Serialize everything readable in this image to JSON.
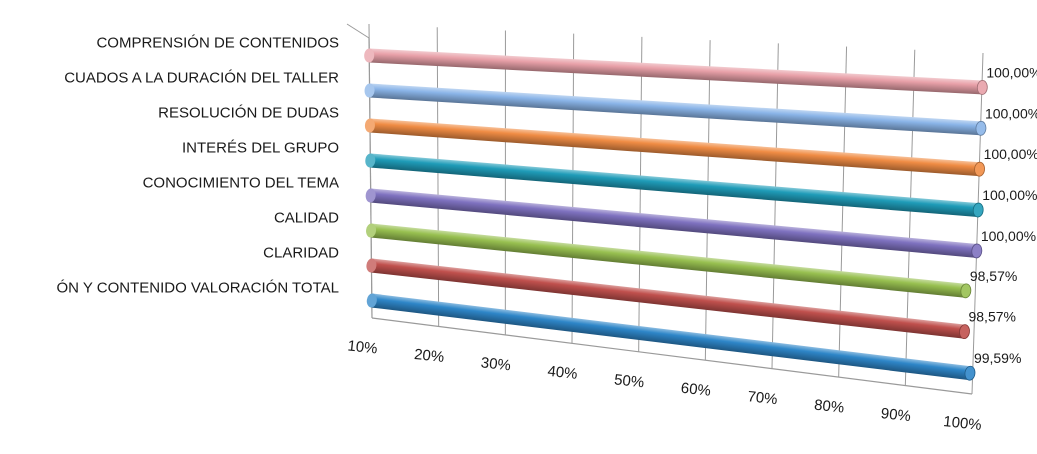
{
  "chart_data": {
    "type": "bar",
    "orientation": "horizontal",
    "style": "3d-cylinder",
    "categories": [
      "COMPRENSIÓN DE CONTENIDOS",
      "CUADOS A LA DURACIÓN DEL TALLER",
      "RESOLUCIÓN DE DUDAS",
      "INTERÉS DEL GRUPO",
      "CONOCIMIENTO DEL TEMA",
      "CALIDAD",
      "CLARIDAD",
      "ÓN Y CONTENIDO VALORACIÓN TOTAL"
    ],
    "values": [
      100.0,
      100.0,
      100.0,
      100.0,
      100.0,
      98.57,
      98.57,
      99.59
    ],
    "value_labels": [
      "100,00%",
      "100,00%",
      "100,00%",
      "100,00%",
      "100,00%",
      "98,57%",
      "98,57%",
      "99,59%"
    ],
    "colors": [
      "#e8a0a8",
      "#8ab4e8",
      "#f08c44",
      "#1f9cb8",
      "#7f72c0",
      "#98c050",
      "#c0504d",
      "#2e86c8"
    ],
    "x_ticks": [
      "10%",
      "20%",
      "30%",
      "40%",
      "50%",
      "60%",
      "70%",
      "80%",
      "90%",
      "100%"
    ],
    "xlim": [
      10,
      100
    ],
    "grid": true,
    "title": "",
    "xlabel": "",
    "ylabel": ""
  }
}
